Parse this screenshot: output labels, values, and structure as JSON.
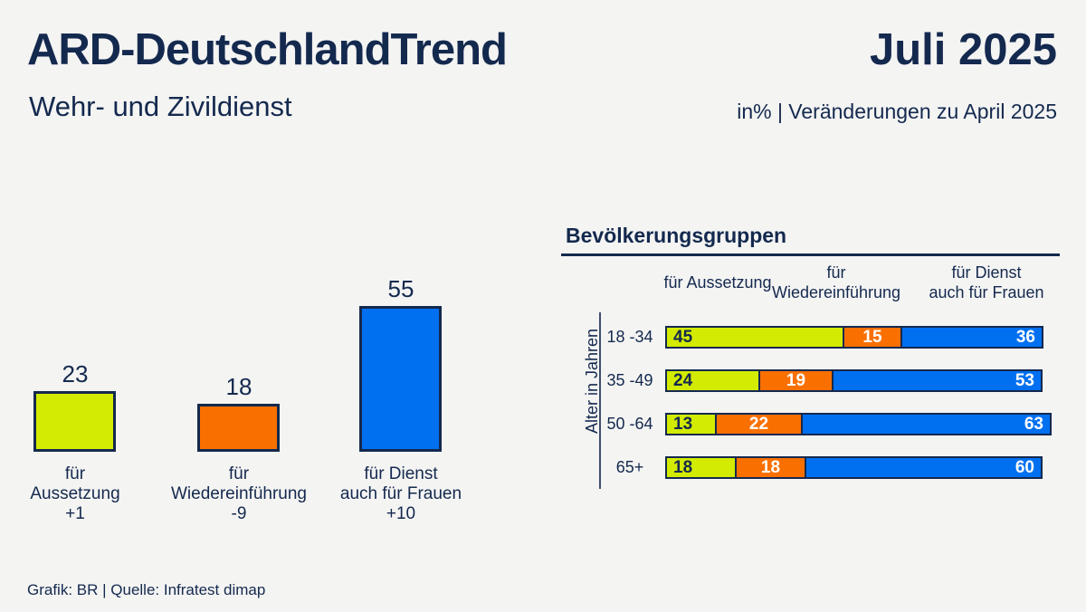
{
  "header": {
    "title": "ARD-DeutschlandTrend",
    "subtitle": "Wehr- und Zivildienst",
    "period": "Juli 2025",
    "note": "in% | Veränderungen zu April 2025"
  },
  "footer": {
    "credit": "Grafik: BR | Quelle: Infratest dimap"
  },
  "colors": {
    "background": "#f4f4f3",
    "navy": "#14294e",
    "green": "#d3eb00",
    "orange": "#f97000",
    "blue": "#0070f0",
    "white_text": "#ffffff"
  },
  "chart_data": [
    {
      "type": "bar",
      "title": "Wehr- und Zivildienst",
      "unit": "%",
      "categories": [
        "für Aussetzung",
        "für Wiedereinführung",
        "für Dienst auch für Frauen"
      ],
      "category_lines": [
        [
          "für",
          "Aussetzung"
        ],
        [
          "für",
          "Wiedereinführung"
        ],
        [
          "für Dienst",
          "auch für Frauen"
        ]
      ],
      "values": [
        23,
        18,
        55
      ],
      "changes": [
        "+1",
        "-9",
        "+10"
      ],
      "colors": [
        "green",
        "orange",
        "blue"
      ],
      "ylim": [
        0,
        60
      ],
      "grid": false
    },
    {
      "type": "stacked-bar-horizontal",
      "title": "Bevölkerungsgruppen",
      "unit": "%",
      "ylabel": "Alter in Jahren",
      "series_headers": [
        [
          "für Aussetzung"
        ],
        [
          "für",
          "Wiedereinführung"
        ],
        [
          "für Dienst",
          "auch für Frauen"
        ]
      ],
      "categories": [
        "18 -34",
        "35 -49",
        "50 -64",
        "65+"
      ],
      "series": [
        {
          "name": "für Aussetzung",
          "color": "green",
          "values": [
            45,
            24,
            13,
            18
          ]
        },
        {
          "name": "für Wiedereinführung",
          "color": "orange",
          "values": [
            15,
            19,
            22,
            18
          ]
        },
        {
          "name": "für Dienst auch für Frauen",
          "color": "blue",
          "values": [
            36,
            53,
            63,
            60
          ]
        }
      ],
      "legend_position": "top"
    }
  ]
}
